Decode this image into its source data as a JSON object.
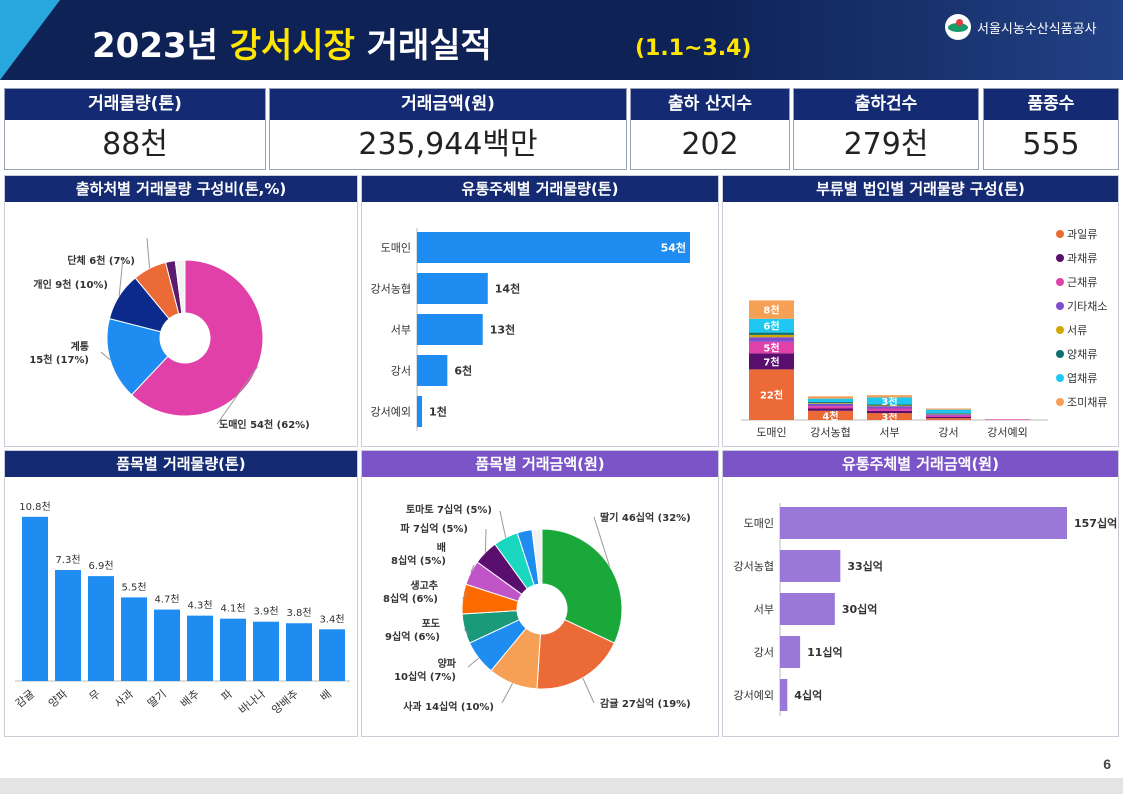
{
  "header": {
    "title_pre": "2023년 ",
    "title_highlight": "강서시장",
    "title_post": " 거래실적",
    "period": "(1.1~3.4)",
    "org_name": "서울시농수산식품공사"
  },
  "kpis": [
    {
      "label": "거래물량(톤)",
      "value": "88천"
    },
    {
      "label": "거래금액(원)",
      "value": "235,944백만"
    },
    {
      "label": "출하 산지수",
      "value": "202"
    },
    {
      "label": "출하건수",
      "value": "279천"
    },
    {
      "label": "품종수",
      "value": "555"
    }
  ],
  "panels": {
    "p1": {
      "title": "출하처별 거래물량 구성비(톤,%)"
    },
    "p2": {
      "title": "유통주체별 거래물량(톤)"
    },
    "p3": {
      "title": "부류별 법인별 거래물량 구성(톤)"
    },
    "p4": {
      "title": "품목별 거래물량(톤)"
    },
    "p5": {
      "title": "품목별 거래금액(원)"
    },
    "p6": {
      "title": "유통주체별 거래금액(원)"
    }
  },
  "page_number": "6",
  "chart_data": [
    {
      "id": "p1",
      "type": "pie",
      "title": "출하처별 거래물량 구성비(톤,%)",
      "slices": [
        {
          "label": "도매인 54천 (62%)",
          "value": 62,
          "color": "#e040a8"
        },
        {
          "label": "계통 15천 (17%)",
          "value": 17,
          "color": "#1e8cf0"
        },
        {
          "label": "개인 9천 (10%)",
          "value": 10,
          "color": "#0c2a8c"
        },
        {
          "label": "단체 6천 (7%)",
          "value": 7,
          "color": "#ec6a35"
        },
        {
          "label": "",
          "value": 2,
          "color": "#5a1a6e"
        },
        {
          "label": "",
          "value": 2,
          "color": "#f2f2f2"
        }
      ]
    },
    {
      "id": "p2",
      "type": "bar",
      "orientation": "horizontal",
      "title": "유통주체별 거래물량(톤)",
      "categories": [
        "도매인",
        "강서농협",
        "서부",
        "강서",
        "강서예외"
      ],
      "values": [
        54,
        14,
        13,
        6,
        1
      ],
      "data_labels": [
        "54천",
        "14천",
        "13천",
        "6천",
        "1천"
      ],
      "color": "#1e8cf0"
    },
    {
      "id": "p3",
      "type": "bar",
      "stacked": true,
      "title": "부류별 법인별 거래물량 구성(톤)",
      "categories": [
        "도매인",
        "강서농협",
        "서부",
        "강서",
        "강서예외"
      ],
      "legend_position": "right",
      "series": [
        {
          "name": "과일류",
          "color": "#ec6a35",
          "values": [
            22,
            4,
            3,
            0.8,
            0
          ],
          "labels": [
            "22천",
            "4천",
            "3천",
            "",
            ""
          ]
        },
        {
          "name": "과채류",
          "color": "#5a0e6e",
          "values": [
            7,
            1,
            1,
            0.5,
            0
          ],
          "labels": [
            "7천",
            "",
            "",
            "",
            ""
          ]
        },
        {
          "name": "근채류",
          "color": "#e040a8",
          "values": [
            5,
            1,
            1,
            0.6,
            0.3
          ],
          "labels": [
            "5천",
            "",
            "",
            "",
            ""
          ]
        },
        {
          "name": "기타채소",
          "color": "#7f4dd0",
          "values": [
            2,
            1,
            1,
            0.6,
            0
          ],
          "labels": [
            "",
            "",
            "",
            "",
            ""
          ]
        },
        {
          "name": "서류",
          "color": "#d2a800",
          "values": [
            1,
            0.3,
            0.3,
            0.2,
            0
          ],
          "labels": [
            "",
            "",
            "",
            "",
            ""
          ]
        },
        {
          "name": "양채류",
          "color": "#0f6e6e",
          "values": [
            1,
            0.5,
            0.5,
            0.3,
            0
          ],
          "labels": [
            "",
            "",
            "",
            "",
            ""
          ]
        },
        {
          "name": "엽채류",
          "color": "#1ec8f0",
          "values": [
            6,
            1.5,
            3,
            1.5,
            0
          ],
          "labels": [
            "6천",
            "",
            "3천",
            "",
            ""
          ]
        },
        {
          "name": "조미채류",
          "color": "#f5a055",
          "values": [
            8,
            1,
            1,
            0.5,
            0
          ],
          "labels": [
            "8천",
            "",
            "",
            "",
            ""
          ]
        }
      ]
    },
    {
      "id": "p4",
      "type": "bar",
      "title": "품목별 거래물량(톤)",
      "categories": [
        "감귤",
        "양파",
        "무",
        "사과",
        "딸기",
        "배추",
        "파",
        "바나나",
        "양배추",
        "배"
      ],
      "values": [
        10.8,
        7.3,
        6.9,
        5.5,
        4.7,
        4.3,
        4.1,
        3.9,
        3.8,
        3.4
      ],
      "data_labels": [
        "10.8천",
        "7.3천",
        "6.9천",
        "5.5천",
        "4.7천",
        "4.3천",
        "4.1천",
        "3.9천",
        "3.8천",
        "3.4천"
      ],
      "color": "#1e8cf0"
    },
    {
      "id": "p5",
      "type": "pie",
      "title": "품목별 거래금액(원)",
      "slices": [
        {
          "label": "딸기 46십억 (32%)",
          "value": 32,
          "color": "#1aa83a"
        },
        {
          "label": "감귤 27십억 (19%)",
          "value": 19,
          "color": "#ec6a35"
        },
        {
          "label": "사과 14십억 (10%)",
          "value": 10,
          "color": "#f5a055"
        },
        {
          "label": "양파 10십억 (7%)",
          "value": 7,
          "color": "#1e8cf0"
        },
        {
          "label": "포도 9십억 (6%)",
          "value": 6,
          "color": "#1a9a7a"
        },
        {
          "label": "생고추 8십억 (6%)",
          "value": 6,
          "color": "#ff6a00"
        },
        {
          "label": "배 8십억 (5%)",
          "value": 5,
          "color": "#c055c8"
        },
        {
          "label": "파 7십억 (5%)",
          "value": 5,
          "color": "#5a0e6e"
        },
        {
          "label": "토마토 7십억 (5%)",
          "value": 5,
          "color": "#1ad8c0"
        },
        {
          "label": "",
          "value": 3,
          "color": "#1e8cf0"
        },
        {
          "label": "",
          "value": 2,
          "color": "#f2f2f2"
        }
      ]
    },
    {
      "id": "p6",
      "type": "bar",
      "orientation": "horizontal",
      "title": "유통주체별 거래금액(원)",
      "categories": [
        "도매인",
        "강서농협",
        "서부",
        "강서",
        "강서예외"
      ],
      "values": [
        157,
        33,
        30,
        11,
        4
      ],
      "data_labels": [
        "157십억",
        "33십억",
        "30십억",
        "11십억",
        "4십억"
      ],
      "color": "#9a78d8"
    }
  ]
}
